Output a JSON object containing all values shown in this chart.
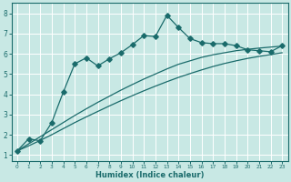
{
  "xlabel": "Humidex (Indice chaleur)",
  "ylabel": "",
  "xlim": [
    -0.5,
    23.5
  ],
  "ylim": [
    0.7,
    8.5
  ],
  "xticks": [
    0,
    1,
    2,
    3,
    4,
    5,
    6,
    7,
    8,
    9,
    10,
    11,
    12,
    13,
    14,
    15,
    16,
    17,
    18,
    19,
    20,
    21,
    22,
    23
  ],
  "yticks": [
    1,
    2,
    3,
    4,
    5,
    6,
    7,
    8
  ],
  "bg_color": "#c8e8e4",
  "grid_color": "#ffffff",
  "line_color": "#1a6b6b",
  "line1_x": [
    0,
    1,
    2,
    3,
    4,
    5,
    6,
    7,
    8,
    9,
    10,
    11,
    12,
    13,
    14,
    15,
    16,
    17,
    18,
    19,
    20,
    21,
    22,
    23
  ],
  "line1_y": [
    1.2,
    1.8,
    1.7,
    2.6,
    4.1,
    5.5,
    5.8,
    5.4,
    5.75,
    6.05,
    6.45,
    6.9,
    6.85,
    7.9,
    7.3,
    6.75,
    6.55,
    6.5,
    6.5,
    6.4,
    6.2,
    6.15,
    6.1,
    6.4
  ],
  "line2_x": [
    0,
    1,
    2,
    3,
    4,
    5,
    6,
    7,
    8,
    9,
    10,
    11,
    12,
    13,
    14,
    15,
    16,
    17,
    18,
    19,
    20,
    21,
    22,
    23
  ],
  "line2_y": [
    1.2,
    1.55,
    1.9,
    2.25,
    2.6,
    2.95,
    3.28,
    3.6,
    3.9,
    4.2,
    4.48,
    4.75,
    5.0,
    5.25,
    5.48,
    5.65,
    5.82,
    5.95,
    6.05,
    6.15,
    6.22,
    6.28,
    6.33,
    6.38
  ],
  "line3_x": [
    0,
    1,
    2,
    3,
    4,
    5,
    6,
    7,
    8,
    9,
    10,
    11,
    12,
    13,
    14,
    15,
    16,
    17,
    18,
    19,
    20,
    21,
    22,
    23
  ],
  "line3_y": [
    1.2,
    1.45,
    1.72,
    2.0,
    2.3,
    2.6,
    2.88,
    3.15,
    3.42,
    3.68,
    3.93,
    4.17,
    4.4,
    4.62,
    4.83,
    5.02,
    5.2,
    5.37,
    5.52,
    5.65,
    5.77,
    5.87,
    5.96,
    6.05
  ]
}
